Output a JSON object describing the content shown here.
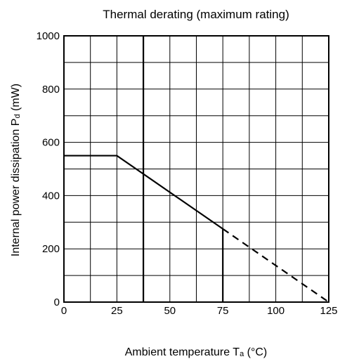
{
  "chart_data": {
    "type": "line",
    "title": "Thermal derating (maximum rating)",
    "xlabel": {
      "main": "Ambient temperature T",
      "sub": "a",
      "unit": " (°C)"
    },
    "ylabel": {
      "main": "Internal power dissipation P",
      "sub": "d",
      "unit": " (mW)"
    },
    "xlim": [
      0,
      125
    ],
    "ylim": [
      0,
      1000
    ],
    "x_ticks": [
      0,
      25,
      50,
      75,
      100,
      125
    ],
    "y_ticks": [
      0,
      200,
      400,
      600,
      800,
      1000
    ],
    "x_grid": [
      0,
      12.5,
      25,
      37.5,
      50,
      62.5,
      75,
      87.5,
      100,
      112.5,
      125
    ],
    "y_grid": [
      0,
      100,
      200,
      300,
      400,
      500,
      600,
      700,
      800,
      900,
      1000
    ],
    "grid": true,
    "series": [
      {
        "style": "solid",
        "points": [
          [
            0,
            550
          ],
          [
            25,
            550
          ],
          [
            75,
            275
          ]
        ]
      },
      {
        "style": "dashed",
        "points": [
          [
            75,
            275
          ],
          [
            125,
            0
          ]
        ]
      }
    ],
    "markers": [
      {
        "style": "solid",
        "points": [
          [
            37.5,
            0
          ],
          [
            37.5,
            1000
          ]
        ]
      },
      {
        "style": "solid",
        "points": [
          [
            75,
            0
          ],
          [
            75,
            275
          ]
        ]
      }
    ]
  }
}
